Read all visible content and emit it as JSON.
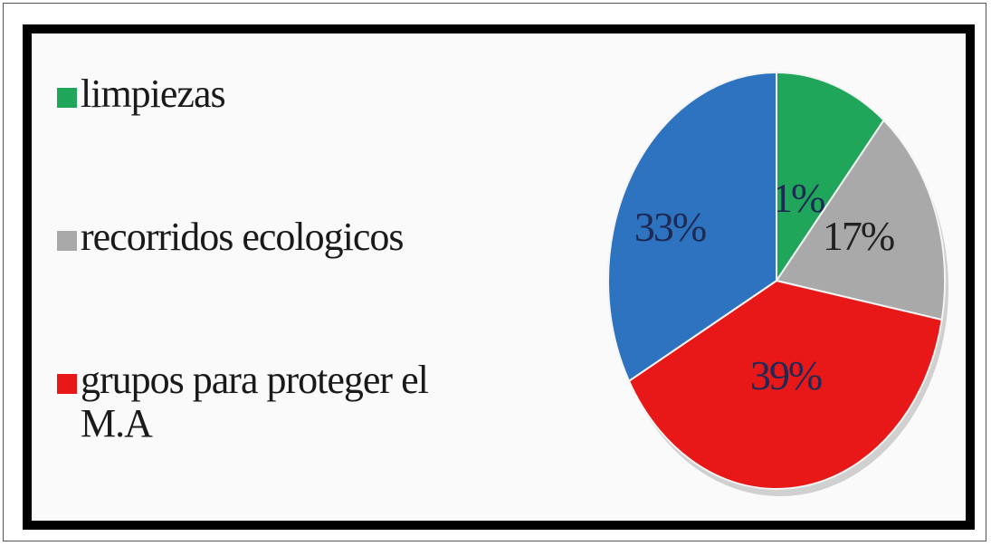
{
  "chart_data": {
    "type": "pie",
    "title": "",
    "slices": [
      {
        "label": "limpiezas",
        "value": 11,
        "display": "11%",
        "color": "#1fa65a"
      },
      {
        "label": "recorridos ecologicos",
        "value": 17,
        "display": "17%",
        "color": "#a9a9a9"
      },
      {
        "label": "grupos para proteger el M.A",
        "value": 39,
        "display": "39%",
        "color": "#e81818"
      },
      {
        "label": "",
        "value": 33,
        "display": "33%",
        "color": "#2d73bf"
      }
    ],
    "legend": {
      "placement": "left",
      "entries": [
        "limpiezas",
        "recorridos ecologicos",
        "grupos para proteger el\nM.A"
      ]
    },
    "start_angle_deg": 0,
    "direction": "clockwise"
  }
}
